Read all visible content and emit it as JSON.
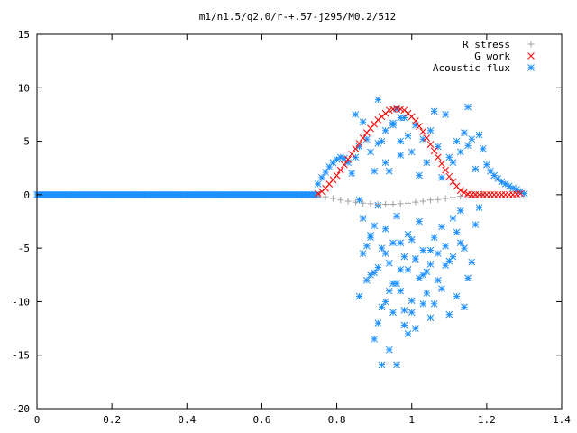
{
  "chart_data": {
    "type": "scatter",
    "title": "m1/n1.5/q2.0/r-+.57-j295/M0.2/512",
    "xlabel": "",
    "ylabel": "",
    "xlim": [
      0,
      1.4
    ],
    "ylim": [
      -20,
      15
    ],
    "x_ticks": [
      0,
      0.2,
      0.4,
      0.6,
      0.8,
      1,
      1.2,
      1.4
    ],
    "x_tick_labels": [
      "0",
      "0.2",
      "0.4",
      "0.6",
      "0.8",
      "1",
      "1.2",
      "1.4"
    ],
    "y_ticks": [
      -20,
      -15,
      -10,
      -5,
      0,
      5,
      10,
      15
    ],
    "y_tick_labels": [
      "-20",
      "-15",
      "-10",
      "-5",
      "0",
      "5",
      "10",
      "15"
    ],
    "grid": false,
    "legend_position": "top-right",
    "series": [
      {
        "name": "R stress",
        "marker": "plus",
        "color": "#a0a0a0",
        "x": [
          0.75,
          0.77,
          0.79,
          0.81,
          0.83,
          0.85,
          0.87,
          0.89,
          0.91,
          0.93,
          0.95,
          0.97,
          0.99,
          1.01,
          1.03,
          1.05,
          1.07,
          1.09,
          1.11,
          1.13,
          1.15,
          1.17,
          1.19
        ],
        "y": [
          0,
          -0.2,
          -0.35,
          -0.5,
          -0.6,
          -0.7,
          -0.8,
          -0.85,
          -0.9,
          -0.9,
          -0.9,
          -0.85,
          -0.8,
          -0.7,
          -0.6,
          -0.5,
          -0.45,
          -0.35,
          -0.25,
          -0.15,
          -0.05,
          -0.02,
          0
        ]
      },
      {
        "name": "G work",
        "marker": "cross",
        "color": "#ff0000",
        "x": [
          0.75,
          0.76,
          0.77,
          0.78,
          0.79,
          0.8,
          0.81,
          0.82,
          0.83,
          0.84,
          0.85,
          0.86,
          0.87,
          0.88,
          0.89,
          0.9,
          0.91,
          0.92,
          0.93,
          0.94,
          0.95,
          0.96,
          0.97,
          0.98,
          0.99,
          1.0,
          1.01,
          1.02,
          1.03,
          1.04,
          1.05,
          1.06,
          1.07,
          1.08,
          1.09,
          1.1,
          1.11,
          1.12,
          1.13,
          1.14,
          1.15,
          1.16,
          1.17,
          1.18,
          1.19,
          1.2,
          1.21,
          1.22,
          1.23,
          1.24,
          1.25,
          1.26,
          1.27,
          1.28,
          1.29
        ],
        "y": [
          0.1,
          0.3,
          0.6,
          1.0,
          1.4,
          1.8,
          2.3,
          2.8,
          3.3,
          3.8,
          4.3,
          4.8,
          5.3,
          5.8,
          6.2,
          6.6,
          7.0,
          7.3,
          7.6,
          7.9,
          8.0,
          8.1,
          8.0,
          7.9,
          7.6,
          7.3,
          6.9,
          6.4,
          5.9,
          5.3,
          4.7,
          4.1,
          3.5,
          2.9,
          2.3,
          1.7,
          1.2,
          0.8,
          0.4,
          0.2,
          0.05,
          0.0,
          0.0,
          0.0,
          0.0,
          0.0,
          0.0,
          0.0,
          0.0,
          0.0,
          0.0,
          0.0,
          0.0,
          0.05,
          0.1
        ]
      },
      {
        "name": "Acoustic flux",
        "marker": "star",
        "color": "#1e90ff",
        "baseline_x_range": [
          0,
          0.75
        ],
        "baseline_y": 0,
        "x": [
          0.75,
          0.76,
          0.77,
          0.78,
          0.79,
          0.8,
          0.81,
          0.82,
          0.83,
          0.84,
          0.85,
          0.86,
          0.87,
          0.88,
          0.89,
          0.9,
          0.91,
          0.92,
          0.93,
          0.94,
          0.95,
          0.96,
          0.97,
          0.98,
          0.99,
          1.0,
          1.01,
          1.02,
          1.03,
          1.04,
          1.05,
          1.06,
          1.07,
          1.08,
          1.09,
          1.1,
          1.11,
          1.12,
          1.13,
          1.14,
          1.15,
          1.16,
          1.17,
          1.18,
          1.19,
          1.2,
          1.21,
          1.22,
          1.23,
          1.24,
          1.25,
          1.26,
          1.27,
          1.28,
          1.29,
          1.3,
          0.86,
          0.87,
          0.88,
          0.89,
          0.9,
          0.91,
          0.92,
          0.93,
          0.94,
          0.95,
          0.96,
          0.97,
          0.98,
          0.99,
          1.0,
          1.01,
          1.02,
          1.03,
          1.04,
          1.05,
          1.06,
          1.07,
          1.08,
          1.09,
          1.1,
          1.11,
          1.12,
          1.13,
          1.14,
          1.15,
          1.16,
          1.17,
          1.18,
          0.86,
          0.88,
          0.9,
          0.92,
          0.94,
          0.96,
          0.98,
          1.0,
          1.02,
          1.04,
          1.06,
          1.08,
          1.1,
          1.12,
          1.14,
          0.87,
          0.89,
          0.91,
          0.93,
          0.95,
          0.97,
          0.99,
          1.01,
          1.03,
          1.05,
          1.07,
          1.09,
          1.11,
          1.13,
          0.91,
          0.93,
          0.95,
          0.97,
          0.99,
          1.01,
          1.03,
          1.05,
          0.9,
          0.92,
          0.94,
          0.96,
          0.98,
          1.0,
          0.89,
          0.97,
          1.15,
          0.85,
          0.91,
          0.93,
          0.95,
          0.97
        ],
        "y": [
          1.0,
          1.6,
          2.1,
          2.6,
          3.0,
          3.3,
          3.5,
          3.4,
          3.0,
          2.0,
          3.5,
          4.5,
          6.8,
          5.2,
          4.0,
          2.2,
          8.9,
          5.0,
          3.0,
          2.2,
          6.5,
          8.0,
          3.7,
          7.2,
          5.5,
          4.0,
          6.5,
          1.8,
          5.2,
          3.0,
          6.0,
          7.8,
          4.5,
          1.6,
          7.5,
          3.5,
          3.0,
          5.0,
          4.0,
          5.8,
          4.6,
          5.2,
          2.4,
          5.6,
          4.3,
          2.8,
          2.2,
          1.8,
          1.5,
          1.2,
          1.0,
          0.8,
          0.6,
          0.5,
          0.3,
          0.1,
          -0.5,
          -2.2,
          -4.8,
          -3.8,
          -2.9,
          -1.0,
          -5.0,
          -3.2,
          -6.4,
          -4.5,
          -2.0,
          -7.0,
          -5.8,
          -3.7,
          -4.2,
          -6.0,
          -2.5,
          -5.2,
          -7.2,
          -6.5,
          -4.0,
          -5.5,
          -3.0,
          -4.8,
          -6.2,
          -2.2,
          -3.5,
          -1.5,
          -5.0,
          -7.8,
          -6.3,
          -2.8,
          -1.2,
          -9.5,
          -8.0,
          -7.3,
          -10.5,
          -9.0,
          -8.3,
          -10.8,
          -9.9,
          -7.8,
          -9.2,
          -10.2,
          -8.8,
          -11.2,
          -9.5,
          -10.5,
          -5.5,
          -4.0,
          -6.8,
          -5.5,
          -8.3,
          -4.5,
          -7.0,
          -6.0,
          -7.5,
          -5.2,
          -8.0,
          -6.6,
          -5.8,
          -4.5,
          -12.0,
          -10.0,
          -11.0,
          -9.0,
          -13.0,
          -12.5,
          -10.2,
          -11.5,
          -13.5,
          -15.9,
          -14.5,
          -15.9,
          -12.2,
          -11.0,
          -7.5,
          7.2,
          8.2,
          7.5,
          4.8,
          6.0,
          6.7,
          5.0
        ]
      }
    ]
  }
}
